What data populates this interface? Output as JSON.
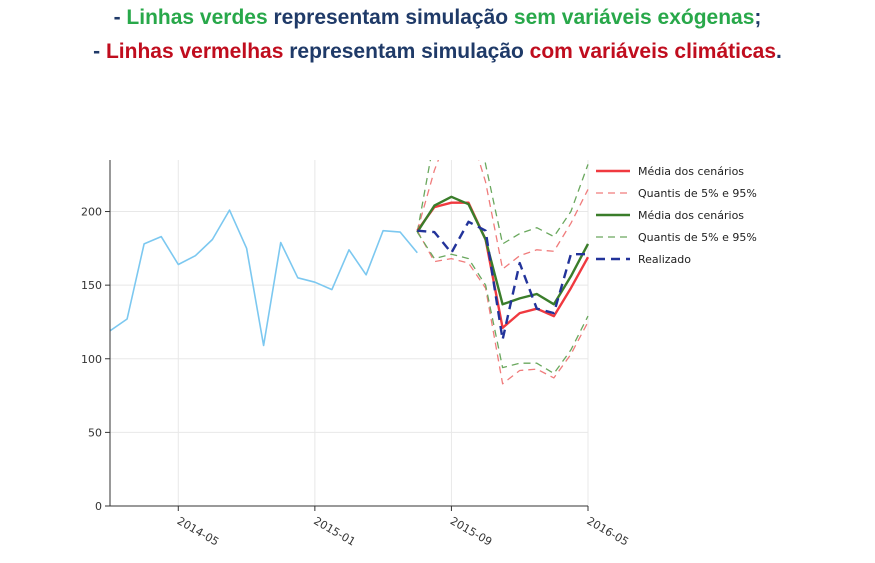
{
  "headline": {
    "line1": {
      "prefix": "- ",
      "green_part": "Linhas verdes",
      "middle": " representam simulação ",
      "green_tail": "sem variáveis exógenas",
      "suffix": ";"
    },
    "line2": {
      "prefix": "- ",
      "red_part": "Linhas vermelhas",
      "middle": " representam simulação ",
      "red_tail": "com variáveis climáticas",
      "suffix": "."
    }
  },
  "colors": {
    "history": "#7cc8f0",
    "red_mean": "#f0393f",
    "red_quantile": "#f07c7c",
    "green_mean": "#3a7d2a",
    "green_quantile": "#6aa85e",
    "realized": "#22339a",
    "axis": "#333333",
    "grid": "#e8e8e8",
    "headline_green": "#28a84a",
    "headline_red": "#c00d1e",
    "headline_navy": "#1f3a68"
  },
  "chart_data": {
    "type": "line",
    "x_axis": {
      "type": "time",
      "range": [
        "2014-01",
        "2016-05"
      ],
      "tick_labels": [
        "2014-05",
        "2015-01",
        "2015-09",
        "2016-05"
      ]
    },
    "y_axis": {
      "range": [
        0,
        235
      ],
      "ticks": [
        0,
        50,
        100,
        150,
        200
      ],
      "grid": true
    },
    "legend": {
      "placement": "right",
      "entries": [
        "Média dos cenários",
        "Quantis de 5% e 95%",
        "Média dos cenários",
        "Quantis de 5% e 95%",
        "Realizado"
      ]
    },
    "series": [
      {
        "key": "historico",
        "style": "solid",
        "x": [
          "2014-01",
          "2014-02",
          "2014-03",
          "2014-04",
          "2014-05",
          "2014-06",
          "2014-07",
          "2014-08",
          "2014-09",
          "2014-10",
          "2014-11",
          "2014-12",
          "2015-01",
          "2015-02",
          "2015-03",
          "2015-04",
          "2015-05",
          "2015-06",
          "2015-07"
        ],
        "values": [
          119,
          127,
          178,
          183,
          164,
          170,
          181,
          201,
          175,
          109,
          179,
          155,
          152,
          147,
          174,
          157,
          187,
          186,
          172
        ]
      },
      {
        "name": "Média dos cenários",
        "key": "media_vermelha",
        "style": "solid",
        "x": [
          "2015-07",
          "2015-08",
          "2015-09",
          "2015-10",
          "2015-11",
          "2015-12",
          "2016-01",
          "2016-02",
          "2016-03",
          "2016-04",
          "2016-05"
        ],
        "values": [
          187,
          203,
          206,
          206,
          181,
          121,
          131,
          134,
          129,
          148,
          169
        ]
      },
      {
        "name": "Quantis de 5% e 95%",
        "key": "quantil_vermelho_superior",
        "style": "dashed",
        "x": [
          "2015-07",
          "2015-08",
          "2015-09",
          "2015-10",
          "2015-11",
          "2015-12",
          "2016-01",
          "2016-02",
          "2016-03",
          "2016-04",
          "2016-05"
        ],
        "values": [
          187,
          228,
          258,
          258,
          220,
          161,
          170,
          174,
          173,
          192,
          215
        ]
      },
      {
        "key": "quantil_vermelho_inferior",
        "style": "dashed",
        "x": [
          "2015-07",
          "2015-08",
          "2015-09",
          "2015-10",
          "2015-11",
          "2015-12",
          "2016-01",
          "2016-02",
          "2016-03",
          "2016-04",
          "2016-05"
        ],
        "values": [
          187,
          166,
          168,
          165,
          148,
          83,
          92,
          93,
          87,
          103,
          125
        ]
      },
      {
        "name": "Média dos cenários",
        "key": "media_verde",
        "style": "solid",
        "x": [
          "2015-07",
          "2015-08",
          "2015-09",
          "2015-10",
          "2015-11",
          "2015-12",
          "2016-01",
          "2016-02",
          "2016-03",
          "2016-04",
          "2016-05"
        ],
        "values": [
          186,
          204,
          210,
          205,
          181,
          137,
          141,
          144,
          137,
          156,
          178
        ]
      },
      {
        "name": "Quantis de 5% e 95%",
        "key": "quantil_verde_superior",
        "style": "dashed",
        "x": [
          "2015-07",
          "2015-08",
          "2015-09",
          "2015-10",
          "2015-11",
          "2015-12",
          "2016-01",
          "2016-02",
          "2016-03",
          "2016-04",
          "2016-05"
        ],
        "values": [
          186,
          250,
          300,
          300,
          232,
          178,
          185,
          189,
          183,
          200,
          232
        ]
      },
      {
        "key": "quantil_verde_inferior",
        "style": "dashed",
        "x": [
          "2015-07",
          "2015-08",
          "2015-09",
          "2015-10",
          "2015-11",
          "2015-12",
          "2016-01",
          "2016-02",
          "2016-03",
          "2016-04",
          "2016-05"
        ],
        "values": [
          186,
          168,
          171,
          168,
          150,
          94,
          97,
          97,
          90,
          106,
          129
        ]
      },
      {
        "name": "Realizado",
        "key": "realizado",
        "style": "dashed",
        "x": [
          "2015-07",
          "2015-08",
          "2015-09",
          "2015-10",
          "2015-11",
          "2015-12",
          "2016-01",
          "2016-02",
          "2016-03",
          "2016-04",
          "2016-05"
        ],
        "values": [
          187,
          186,
          172,
          193,
          187,
          113,
          165,
          134,
          131,
          171,
          171
        ]
      }
    ]
  }
}
